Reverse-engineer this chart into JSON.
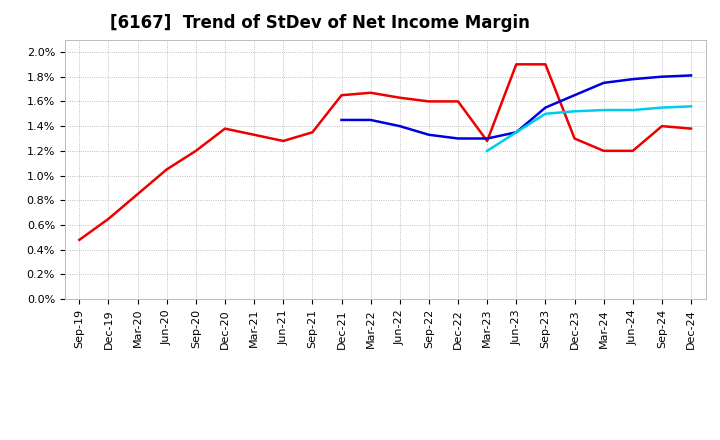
{
  "title": "[6167]  Trend of StDev of Net Income Margin",
  "ylim": [
    0.0,
    0.021
  ],
  "yticks": [
    0.0,
    0.002,
    0.004,
    0.006,
    0.008,
    0.01,
    0.012,
    0.014,
    0.016,
    0.018,
    0.02
  ],
  "ytick_labels": [
    "0.0%",
    "0.2%",
    "0.4%",
    "0.6%",
    "0.8%",
    "1.0%",
    "1.2%",
    "1.4%",
    "1.6%",
    "1.8%",
    "2.0%"
  ],
  "x_labels": [
    "Sep-19",
    "Dec-19",
    "Mar-20",
    "Jun-20",
    "Sep-20",
    "Dec-20",
    "Mar-21",
    "Jun-21",
    "Sep-21",
    "Dec-21",
    "Mar-22",
    "Jun-22",
    "Sep-22",
    "Dec-22",
    "Mar-23",
    "Jun-23",
    "Sep-23",
    "Dec-23",
    "Mar-24",
    "Jun-24",
    "Sep-24",
    "Dec-24"
  ],
  "series_3y": [
    0.0048,
    0.0065,
    0.0085,
    0.0105,
    0.012,
    0.0138,
    0.0133,
    0.0128,
    0.0135,
    0.0165,
    0.0167,
    0.0163,
    0.016,
    0.016,
    0.0128,
    0.019,
    0.019,
    0.013,
    0.012,
    0.012,
    0.014,
    0.0138
  ],
  "series_5y": [
    null,
    null,
    null,
    null,
    null,
    null,
    null,
    null,
    null,
    0.0145,
    0.0145,
    0.014,
    0.0133,
    0.013,
    0.013,
    0.0135,
    0.0155,
    0.0165,
    0.0175,
    0.0178,
    0.018,
    0.0181
  ],
  "series_7y": [
    null,
    null,
    null,
    null,
    null,
    null,
    null,
    null,
    null,
    null,
    null,
    null,
    null,
    null,
    0.012,
    0.0135,
    0.015,
    0.0152,
    0.0153,
    0.0153,
    0.0155,
    0.0156
  ],
  "series_10y": [
    null,
    null,
    null,
    null,
    null,
    null,
    null,
    null,
    null,
    null,
    null,
    null,
    null,
    null,
    null,
    null,
    null,
    null,
    null,
    null,
    null,
    null
  ],
  "color_3y": "#ee0000",
  "color_5y": "#0000dd",
  "color_7y": "#00ccee",
  "color_10y": "#008800",
  "line_width": 1.8,
  "bg_color": "#ffffff",
  "plot_bg_color": "#ffffff",
  "grid_color": "#999999",
  "title_fontsize": 12,
  "tick_fontsize": 8,
  "legend_fontsize": 9
}
